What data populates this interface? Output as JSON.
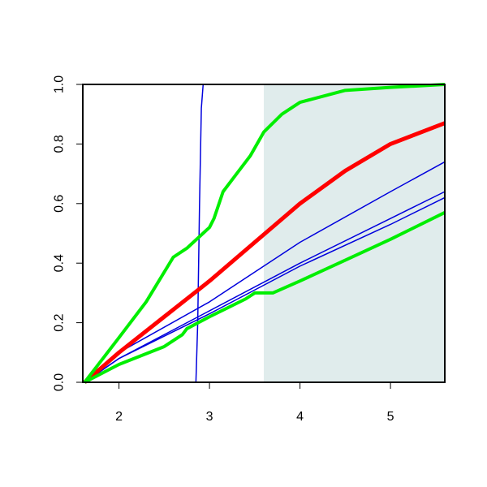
{
  "chart_data": {
    "type": "line",
    "xlim": [
      1.6,
      5.6
    ],
    "ylim": [
      0,
      1
    ],
    "xticks": [
      2,
      3,
      4,
      5
    ],
    "yticks": [
      {
        "value": 0,
        "label": "0.0"
      },
      0.2,
      0.4,
      0.6,
      0.8,
      {
        "value": 1,
        "label": "1.0"
      }
    ],
    "shaded_region": {
      "xmin": 3.6,
      "xmax": 5.6,
      "color": "#e0ecec"
    },
    "series": [
      {
        "color": "#0000dd",
        "width": 1.5,
        "x": [
          1.6,
          2.85,
          2.87,
          2.89,
          2.91,
          2.93,
          5.6
        ],
        "values": [
          0,
          0,
          0.2,
          0.6,
          0.92,
          1.0,
          1.0
        ]
      },
      {
        "color": "#0000dd",
        "width": 1.5,
        "x": [
          1.62,
          2.0,
          3.0,
          4.0,
          5.0,
          5.6
        ],
        "values": [
          0,
          0.1,
          0.27,
          0.47,
          0.64,
          0.74
        ]
      },
      {
        "color": "#0000dd",
        "width": 1.5,
        "x": [
          1.62,
          2.0,
          3.0,
          4.0,
          5.0,
          5.6
        ],
        "values": [
          0,
          0.08,
          0.24,
          0.4,
          0.55,
          0.64
        ]
      },
      {
        "color": "#0000dd",
        "width": 1.5,
        "x": [
          1.62,
          2.0,
          3.0,
          4.0,
          5.0,
          5.6
        ],
        "values": [
          0,
          0.08,
          0.23,
          0.39,
          0.53,
          0.62
        ]
      },
      {
        "color": "#ff0000",
        "width": 5,
        "x": [
          1.62,
          2.0,
          2.5,
          3.0,
          3.5,
          4.0,
          4.5,
          5.0,
          5.6
        ],
        "values": [
          0,
          0.1,
          0.22,
          0.34,
          0.47,
          0.6,
          0.71,
          0.8,
          0.87
        ]
      },
      {
        "color": "#00ee00",
        "width": 4,
        "x": [
          1.62,
          2.0,
          2.3,
          2.6,
          2.75,
          3.0,
          3.05,
          3.15,
          3.3,
          3.45,
          3.6,
          3.8,
          4.0,
          4.5,
          5.0,
          5.6
        ],
        "values": [
          0,
          0.15,
          0.27,
          0.42,
          0.45,
          0.52,
          0.55,
          0.64,
          0.7,
          0.76,
          0.84,
          0.9,
          0.94,
          0.98,
          0.99,
          1.0
        ]
      },
      {
        "color": "#00ee00",
        "width": 4,
        "x": [
          1.62,
          2.0,
          2.5,
          2.7,
          2.75,
          3.0,
          3.4,
          3.5,
          3.7,
          4.0,
          4.5,
          5.0,
          5.6
        ],
        "values": [
          0,
          0.06,
          0.12,
          0.16,
          0.18,
          0.22,
          0.28,
          0.3,
          0.3,
          0.34,
          0.41,
          0.48,
          0.57
        ]
      }
    ]
  }
}
